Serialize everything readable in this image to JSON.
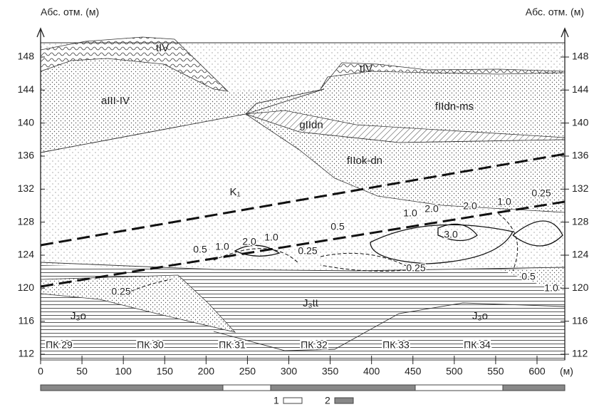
{
  "axes": {
    "y_title_left": "Абс. отм. (м)",
    "y_title_right": "Абс. отм. (м)",
    "x_unit": "(м)",
    "yticks": [
      112,
      116,
      120,
      124,
      128,
      132,
      136,
      140,
      144,
      148
    ],
    "xticks": [
      0,
      50,
      100,
      150,
      200,
      250,
      300,
      350,
      400,
      450,
      500,
      550,
      600
    ]
  },
  "layers": [
    {
      "label": "tIV"
    },
    {
      "label": "tIV"
    },
    {
      "label": "aIII-IV"
    },
    {
      "label": "fIIdn-ms"
    },
    {
      "label": "gIIdn"
    },
    {
      "label": "fIIok-dn"
    },
    {
      "label": "K₁"
    },
    {
      "label": "J₃tt"
    },
    {
      "label": "J₃o"
    },
    {
      "label": "J₃o"
    }
  ],
  "contours": [
    "0.5",
    "1.0",
    "2.0",
    "1.0",
    "0.25",
    "0.5",
    "1.0",
    "2.0",
    "2.0",
    "1.0",
    "0.25",
    "3.0",
    "0.25",
    "0.5",
    "1.0",
    "0.25"
  ],
  "pickets": [
    "ПК 29",
    "ПК 30",
    "ПК 31",
    "ПК 32",
    "ПК 33",
    "ПК 34"
  ],
  "legend": [
    {
      "label": "1"
    },
    {
      "label": "2"
    }
  ]
}
